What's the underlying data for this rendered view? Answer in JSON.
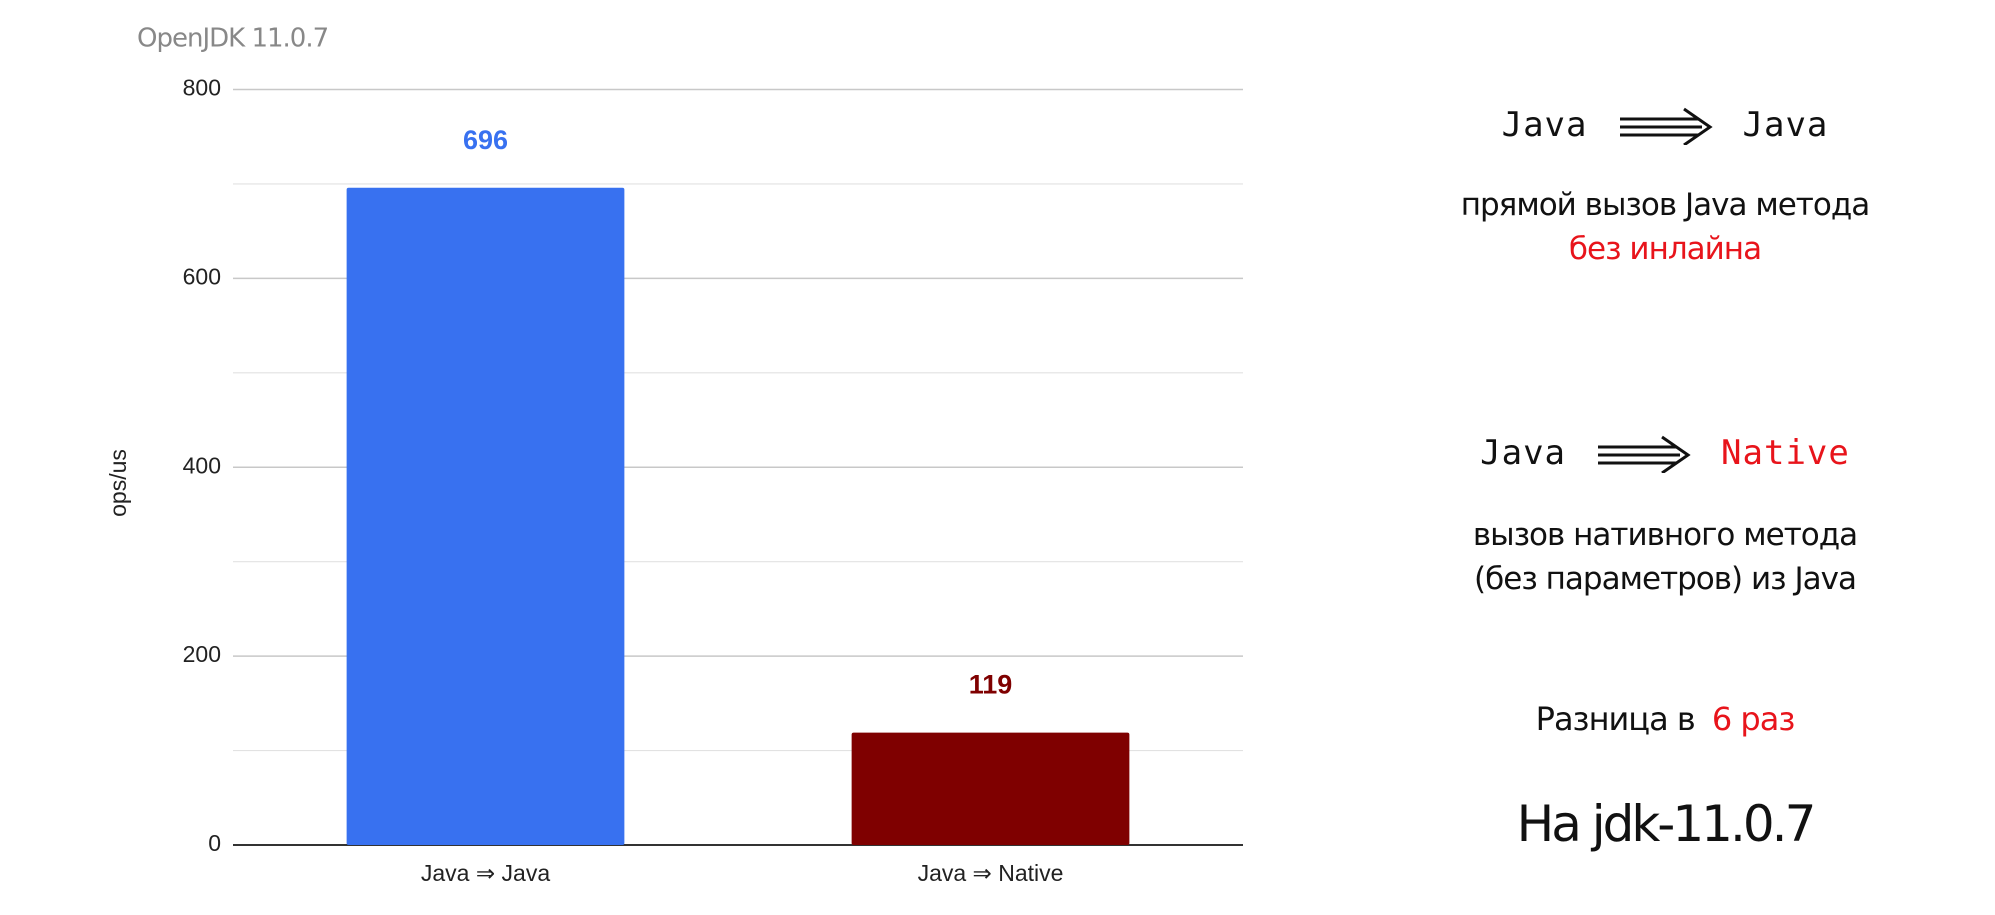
{
  "chart_data": {
    "type": "bar",
    "title": "OpenJDK 11.0.7",
    "y_label": "ops/us",
    "categories": [
      "Java ⇒ Java",
      "Java ⇒ Native"
    ],
    "values": [
      696,
      119
    ],
    "colors": [
      "#3871f0",
      "#7f0000"
    ],
    "ylim": [
      0,
      800
    ],
    "yticks": [
      0,
      200,
      400,
      600,
      800
    ],
    "grid": true,
    "minor_grid": true
  },
  "notes": {
    "call1": {
      "from": "Java",
      "to": "Java",
      "desc": "прямой вызов Java метода",
      "highlight": "без инлайна"
    },
    "call2": {
      "from": "Java",
      "to": "Native",
      "desc": [
        "вызов нативного метода",
        "(без параметров) из Java"
      ]
    },
    "diff": {
      "text": "Разница в",
      "highlight": "6 раз"
    },
    "footer": "На jdk-11.0.7"
  }
}
